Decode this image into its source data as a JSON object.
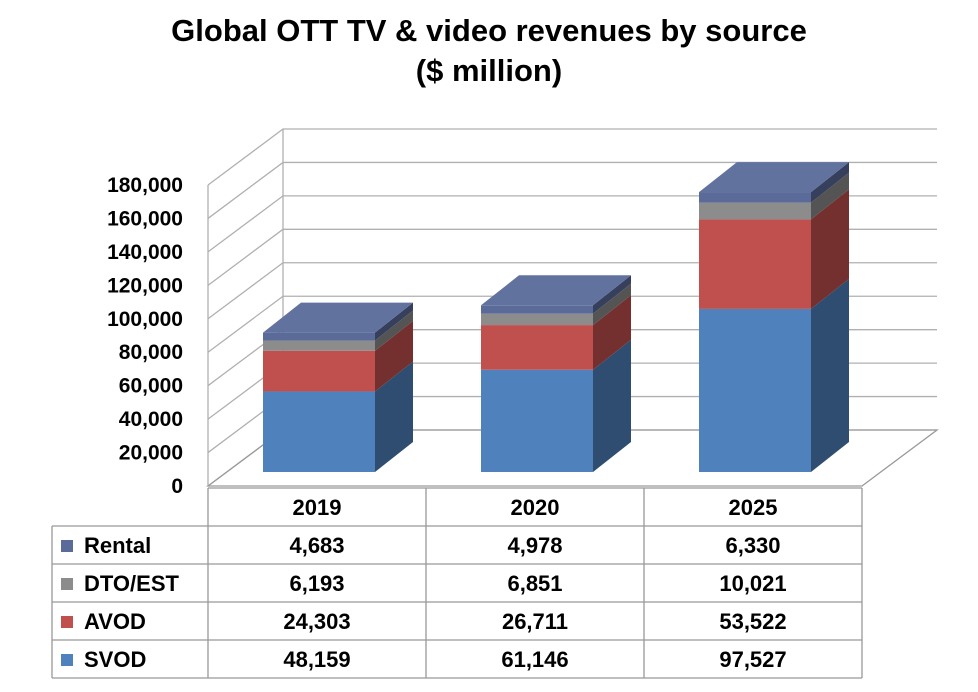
{
  "chart_data": {
    "type": "bar",
    "stacked": true,
    "title": "Global OTT TV & video revenues by source",
    "subtitle": "($ million)",
    "categories": [
      "2019",
      "2020",
      "2025"
    ],
    "series": [
      {
        "name": "SVOD",
        "values": [
          48159,
          61146,
          97527
        ],
        "color": "#4f81bd"
      },
      {
        "name": "AVOD",
        "values": [
          24303,
          26711,
          53522
        ],
        "color": "#c0504d"
      },
      {
        "name": "DTO/EST",
        "values": [
          6193,
          6851,
          10021
        ],
        "color": "#8c8c8c"
      },
      {
        "name": "Rental",
        "values": [
          4683,
          4978,
          6330
        ],
        "color": "#5a6b9a"
      }
    ],
    "y_ticks": [
      "0",
      "20,000",
      "40,000",
      "60,000",
      "80,000",
      "100,000",
      "120,000",
      "140,000",
      "160,000",
      "180,000"
    ],
    "ylim": [
      0,
      180000
    ],
    "grid": true,
    "legend_placement": "data table below chart",
    "table": {
      "rows": [
        {
          "name": "Rental",
          "values": [
            "4,683",
            "4,978",
            "6,330"
          ]
        },
        {
          "name": "DTO/EST",
          "values": [
            "6,193",
            "6,851",
            "10,021"
          ]
        },
        {
          "name": "AVOD",
          "values": [
            "24,303",
            "26,711",
            "53,522"
          ]
        },
        {
          "name": "SVOD",
          "values": [
            "48,159",
            "61,146",
            "97,527"
          ]
        }
      ]
    }
  }
}
